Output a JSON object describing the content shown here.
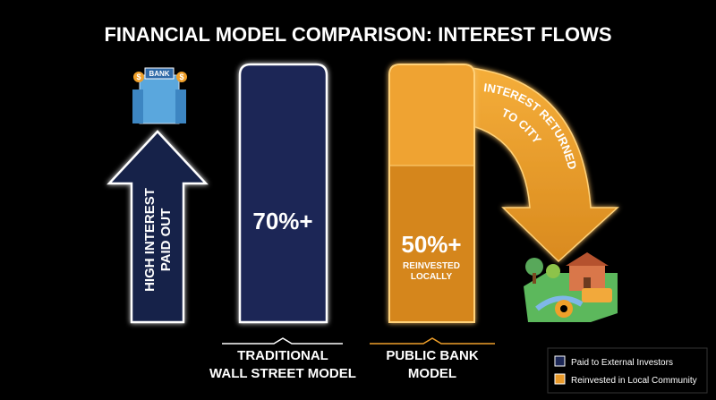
{
  "title": "FINANCIAL MODEL COMPARISON: INTEREST FLOWS",
  "bank_icon": {
    "sign": "BANK",
    "coin_symbol": "$"
  },
  "left_arrow": {
    "label_lines": [
      "HIGH INTEREST",
      "PAID OUT"
    ]
  },
  "bars": [
    {
      "value_label": "70%+",
      "caption_lines": [
        "TRADITIONAL",
        "WALL STREET MODEL"
      ]
    },
    {
      "value_label": "50%+",
      "sub_lines": [
        "REINVESTED",
        "LOCALLY"
      ],
      "caption_lines": [
        "PUBLIC BANK",
        "MODEL"
      ]
    }
  ],
  "curved_arrow": {
    "label_lines": [
      "INTEREST RETURNED",
      "TO CITY"
    ]
  },
  "legend": [
    {
      "label": "Paid to External Investors",
      "color": "#1c2756"
    },
    {
      "label": "Reinvested in Local Community",
      "color": "#e99a2a"
    }
  ]
}
